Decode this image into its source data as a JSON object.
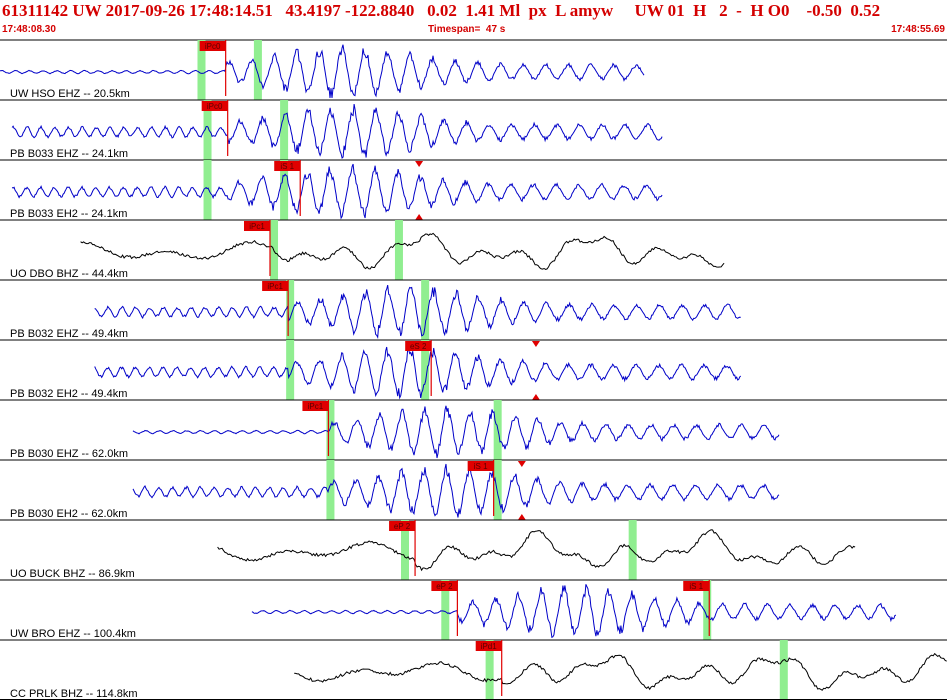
{
  "header": {
    "title": "61311142 UW 2017-09-26 17:48:14.51   43.4197 -122.8840   0.02  1.41 Ml  px  L amyw     UW 01  H   2  -  H O0    -0.50  0.52",
    "time_start": "17:48:08.30",
    "timespan": "Timespan=  47 s",
    "time_end": "17:48:55.69"
  },
  "colors": {
    "trace_blue": "#0000c8",
    "trace_black": "#000000",
    "pick_red": "#e00000",
    "pick_flag_red": "#e00000",
    "window_green": "#90ee90",
    "border": "#000000",
    "header_red": "#d40000"
  },
  "chart_data": {
    "type": "line",
    "title": "61311142 UW 2017-09-26 17:48:14.51",
    "x_unit": "s",
    "xlim": [
      0,
      47
    ],
    "panels": [
      {
        "label": "UW HSO EHZ -- 20.5km",
        "color": "blue",
        "trace_start_s": 0.0,
        "trace_end_s": 32.0,
        "signal_onset_s": 11.2,
        "character": "high",
        "picks": [
          {
            "label": "iPc0",
            "t": 11.2,
            "pos": "top"
          }
        ],
        "green": [
          10.0,
          12.8
        ]
      },
      {
        "label": "PB B033 EHZ -- 24.1km",
        "color": "blue",
        "trace_start_s": 0.6,
        "trace_end_s": 32.9,
        "signal_onset_s": 11.3,
        "character": "high",
        "picks": [
          {
            "label": "iPc0",
            "t": 11.3,
            "pos": "top"
          }
        ],
        "green": [
          10.3,
          14.1
        ]
      },
      {
        "label": "PB B033 EH2 -- 24.1km",
        "color": "blue",
        "trace_start_s": 0.6,
        "trace_end_s": 32.9,
        "signal_onset_s": 11.3,
        "character": "high",
        "picks": [
          {
            "label": "iS 1",
            "t": 14.9,
            "pos": "top"
          }
        ],
        "green": [
          10.3,
          14.1
        ],
        "triangle_t": 20.8
      },
      {
        "label": "UO DBO BHZ -- 44.4km",
        "color": "black",
        "trace_start_s": 4.0,
        "trace_end_s": 36.0,
        "signal_onset_s": 13.4,
        "character": "low",
        "picks": [
          {
            "label": "iPc1",
            "t": 13.4,
            "pos": "top"
          }
        ],
        "green": [
          13.6,
          19.8
        ]
      },
      {
        "label": "PB B032 EHZ -- 49.4km",
        "color": "blue",
        "trace_start_s": 4.7,
        "trace_end_s": 36.8,
        "signal_onset_s": 14.3,
        "character": "high",
        "picks": [
          {
            "label": "iPc1",
            "t": 14.3,
            "pos": "top"
          }
        ],
        "green": [
          14.4,
          21.1
        ]
      },
      {
        "label": "PB B032 EH2 -- 49.4km",
        "color": "blue",
        "trace_start_s": 4.7,
        "trace_end_s": 36.8,
        "signal_onset_s": 14.3,
        "character": "high",
        "picks": [
          {
            "label": "eS 2",
            "t": 21.4,
            "pos": "top"
          }
        ],
        "green": [
          14.4,
          21.1
        ],
        "triangle_t": 26.6
      },
      {
        "label": "PB B030 EHZ -- 62.0km",
        "color": "blue",
        "trace_start_s": 6.6,
        "trace_end_s": 38.7,
        "signal_onset_s": 16.3,
        "character": "high",
        "picks": [
          {
            "label": "iPc1",
            "t": 16.3,
            "pos": "top"
          }
        ],
        "green": [
          16.4,
          24.7
        ]
      },
      {
        "label": "PB B030 EH2 -- 62.0km",
        "color": "blue",
        "trace_start_s": 6.6,
        "trace_end_s": 38.7,
        "signal_onset_s": 16.3,
        "character": "high",
        "picks": [
          {
            "label": "iS 1",
            "t": 24.5,
            "pos": "top"
          }
        ],
        "green": [
          16.4,
          24.7
        ],
        "triangle_t": 25.9
      },
      {
        "label": "UO BUCK BHZ -- 86.9km",
        "color": "black",
        "trace_start_s": 10.8,
        "trace_end_s": 42.5,
        "signal_onset_s": 20.6,
        "character": "low",
        "picks": [
          {
            "label": "eP 2",
            "t": 20.6,
            "pos": "top"
          }
        ],
        "green": [
          20.1,
          31.4
        ]
      },
      {
        "label": "UW BRO EHZ -- 100.4km",
        "color": "blue",
        "trace_start_s": 12.5,
        "trace_end_s": 44.5,
        "signal_onset_s": 22.7,
        "character": "high",
        "picks": [
          {
            "label": "eP 2",
            "t": 22.7,
            "pos": "top"
          },
          {
            "label": "iS 1",
            "t": 35.2,
            "pos": "top"
          }
        ],
        "green": [
          22.1,
          35.1
        ]
      },
      {
        "label": "CC PRLK BHZ -- 114.8km",
        "color": "black",
        "trace_start_s": 14.6,
        "trace_end_s": 47.0,
        "signal_onset_s": 24.9,
        "character": "low",
        "picks": [
          {
            "label": "iPd1",
            "t": 24.9,
            "pos": "top"
          }
        ],
        "green": [
          24.3,
          38.9
        ]
      }
    ]
  }
}
